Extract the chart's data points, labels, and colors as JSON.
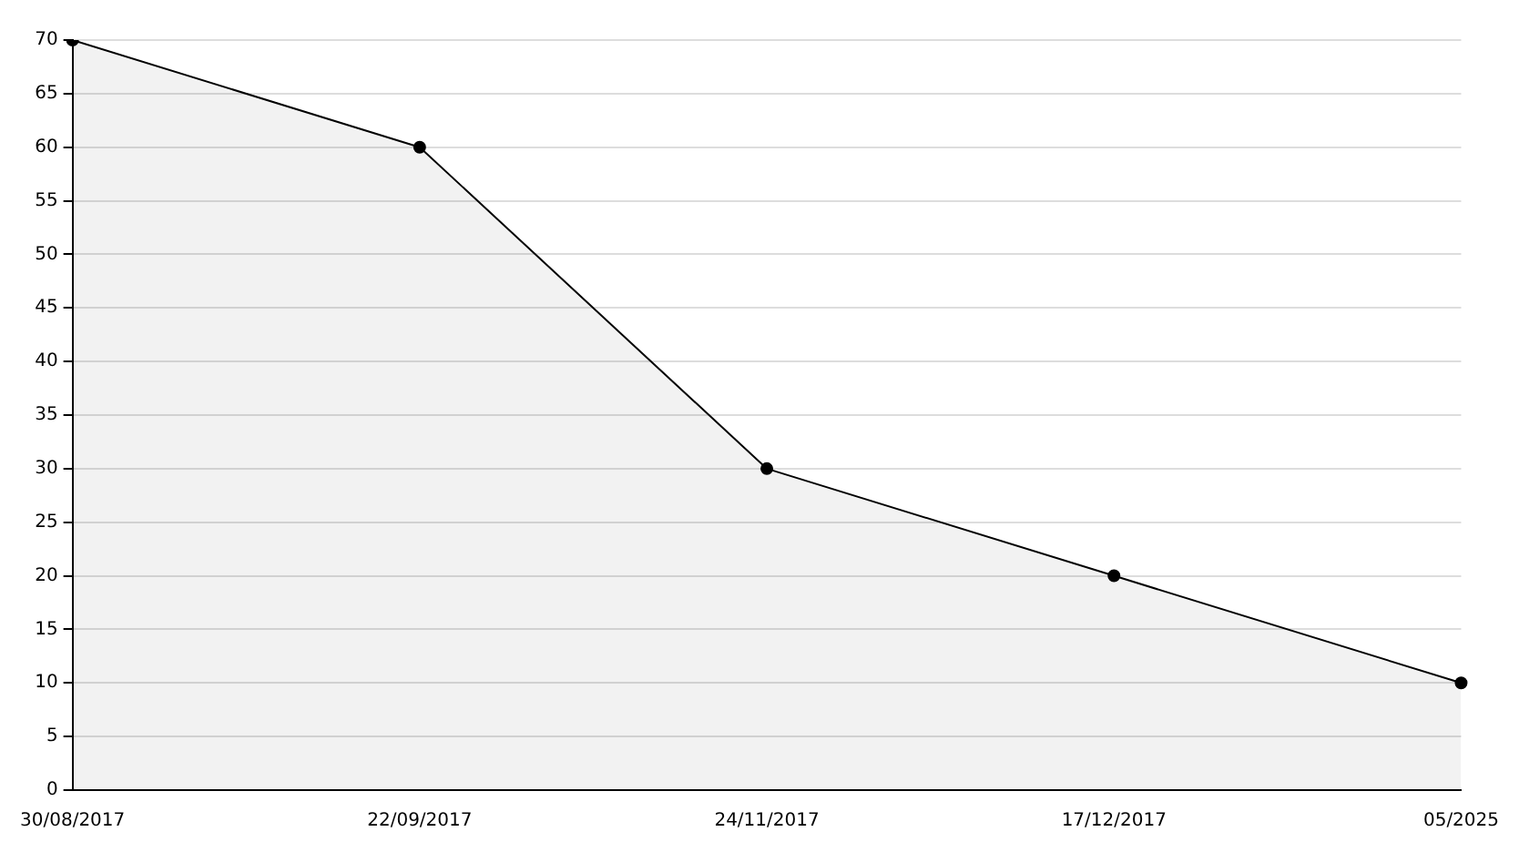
{
  "chart_data": {
    "type": "area",
    "categories": [
      "30/08/2017",
      "22/09/2017",
      "24/11/2017",
      "17/12/2017",
      "05/2025"
    ],
    "series": [
      {
        "color": "#000000",
        "values": [
          70,
          60,
          30,
          20,
          10
        ]
      }
    ],
    "ylim": [
      0,
      70
    ],
    "yticks": [
      0,
      5,
      10,
      15,
      20,
      25,
      30,
      35,
      40,
      45,
      50,
      55,
      60,
      65,
      70
    ],
    "grid": "y",
    "legend": false,
    "marker": "circle",
    "line_style": "solid"
  }
}
